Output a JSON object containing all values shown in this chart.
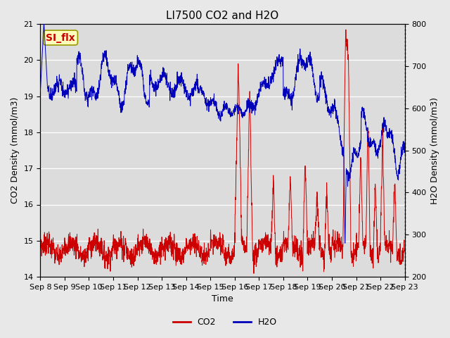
{
  "title": "LI7500 CO2 and H2O",
  "xlabel": "Time",
  "ylabel_left": "CO2 Density (mmol/m3)",
  "ylabel_right": "H2O Density (mmol/m3)",
  "ylim_left": [
    14.0,
    21.0
  ],
  "ylim_right": [
    200,
    800
  ],
  "xtick_labels": [
    "Sep 8",
    "Sep 9",
    "Sep 10",
    "Sep 11",
    "Sep 12",
    "Sep 13",
    "Sep 14",
    "Sep 15",
    "Sep 16",
    "Sep 17",
    "Sep 18",
    "Sep 19",
    "Sep 20",
    "Sep 21",
    "Sep 22",
    "Sep 23"
  ],
  "annotation_text": "SI_flx",
  "annotation_bg": "#ffffbb",
  "annotation_border": "#999900",
  "co2_color": "#cc0000",
  "h2o_color": "#0000bb",
  "fig_bg": "#e8e8e8",
  "plot_bg": "#dcdcdc",
  "title_fontsize": 11,
  "axis_fontsize": 9,
  "tick_fontsize": 8,
  "legend_fontsize": 9
}
